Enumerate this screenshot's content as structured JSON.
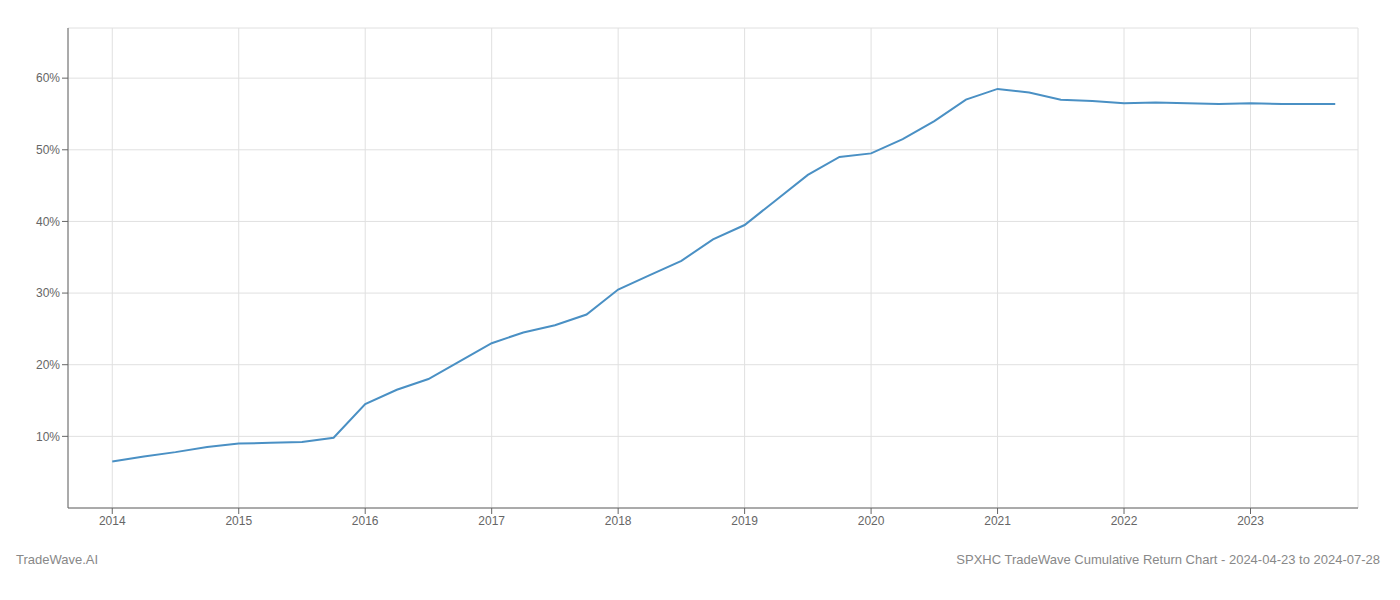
{
  "chart_data": {
    "type": "line",
    "title": "SPXHC TradeWave Cumulative Return Chart - 2024-04-23 to 2024-07-28",
    "annotations": [
      "TradeWave.AI"
    ],
    "x": [
      2014.0,
      2014.25,
      2014.5,
      2014.75,
      2015.0,
      2015.25,
      2015.5,
      2015.75,
      2016.0,
      2016.25,
      2016.5,
      2016.75,
      2017.0,
      2017.25,
      2017.5,
      2017.75,
      2018.0,
      2018.25,
      2018.5,
      2018.75,
      2019.0,
      2019.25,
      2019.5,
      2019.75,
      2020.0,
      2020.25,
      2020.5,
      2020.75,
      2021.0,
      2021.25,
      2021.5,
      2021.75,
      2022.0,
      2022.25,
      2022.5,
      2022.75,
      2023.0,
      2023.25,
      2023.5,
      2023.67
    ],
    "values": [
      6.5,
      7.2,
      7.8,
      8.5,
      9.0,
      9.1,
      9.2,
      9.8,
      14.5,
      16.5,
      18.0,
      20.5,
      23.0,
      24.5,
      25.5,
      27.0,
      30.5,
      32.5,
      34.5,
      37.5,
      39.5,
      43.0,
      46.5,
      49.0,
      49.5,
      51.5,
      54.0,
      57.0,
      58.5,
      58.0,
      57.0,
      56.8,
      56.5,
      56.6,
      56.5,
      56.4,
      56.5,
      56.4,
      56.4,
      56.4
    ],
    "color": "#4a90c4",
    "xlim": [
      2013.65,
      2023.85
    ],
    "ylim": [
      0,
      67
    ],
    "xticks": [
      2014,
      2015,
      2016,
      2017,
      2018,
      2019,
      2020,
      2021,
      2022,
      2023
    ],
    "yticks": [
      {
        "value": 10,
        "label": "10%"
      },
      {
        "value": 20,
        "label": "20%"
      },
      {
        "value": 30,
        "label": "30%"
      },
      {
        "value": 40,
        "label": "40%"
      },
      {
        "value": 50,
        "label": "50%"
      },
      {
        "value": 60,
        "label": "60%"
      }
    ],
    "grid": true
  }
}
